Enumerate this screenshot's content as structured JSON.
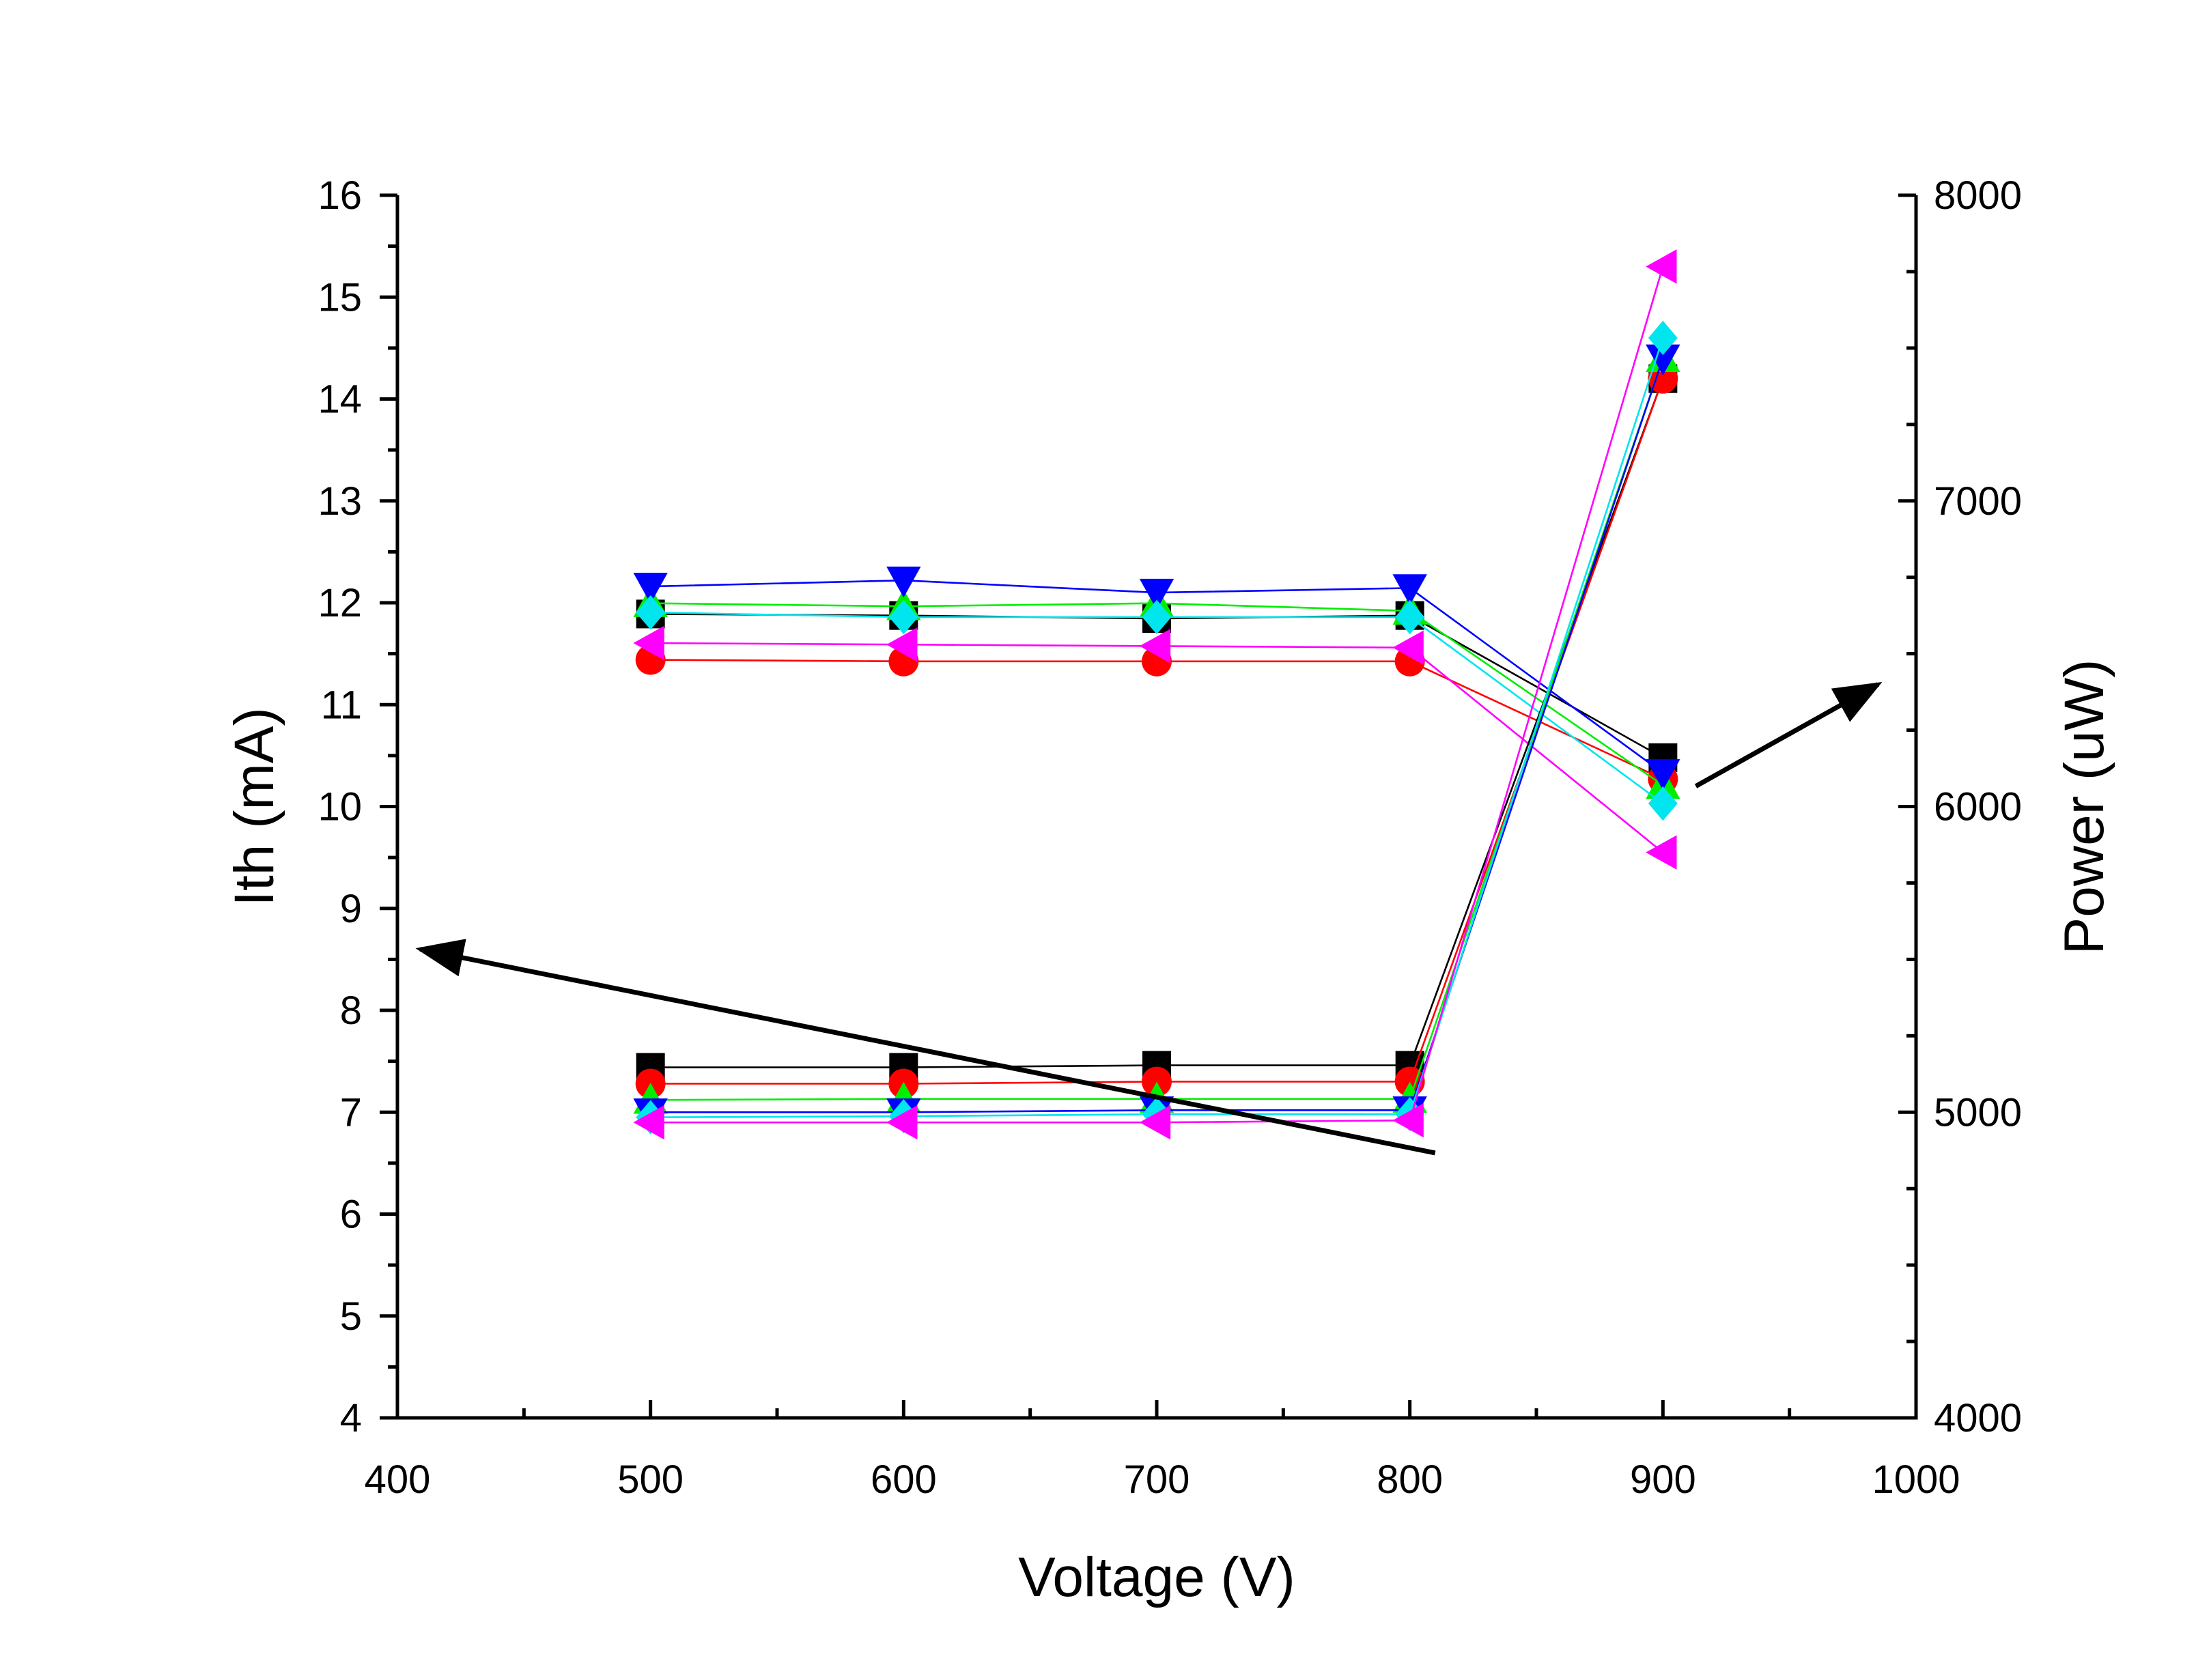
{
  "chart_data": {
    "type": "line",
    "title": "",
    "xlabel": "Voltage (V)",
    "ylabel": "Ith (mA)",
    "y2label": "Power (uW)",
    "xlim": [
      400,
      1000
    ],
    "ylim": [
      4,
      16
    ],
    "y2lim": [
      4000,
      8000
    ],
    "xticks": [
      400,
      500,
      600,
      700,
      800,
      900,
      1000
    ],
    "yticks": [
      4,
      5,
      6,
      7,
      8,
      9,
      10,
      11,
      12,
      13,
      14,
      15,
      16
    ],
    "y2ticks": [
      4000,
      5000,
      6000,
      7000,
      8000
    ],
    "grid": false,
    "legend": "none",
    "x": [
      500,
      600,
      700,
      800,
      900
    ],
    "ith_series": [
      {
        "color": "#000000",
        "marker": "square",
        "values": [
          7.44,
          7.44,
          7.46,
          7.46,
          14.2
        ]
      },
      {
        "color": "#ff0000",
        "marker": "circle",
        "values": [
          7.28,
          7.28,
          7.3,
          7.3,
          14.2
        ]
      },
      {
        "color": "#00ee00",
        "marker": "triangle-up",
        "values": [
          7.12,
          7.13,
          7.13,
          7.13,
          14.4
        ]
      },
      {
        "color": "#0000ff",
        "marker": "triangle-down",
        "values": [
          7.0,
          7.0,
          7.02,
          7.02,
          14.4
        ]
      },
      {
        "color": "#00e5ee",
        "marker": "diamond",
        "values": [
          6.95,
          6.96,
          6.98,
          6.98,
          14.6
        ]
      },
      {
        "color": "#ff00ff",
        "marker": "triangle-left",
        "values": [
          6.9,
          6.9,
          6.9,
          6.92,
          15.3
        ]
      }
    ],
    "power_series": [
      {
        "color": "#000000",
        "marker": "square",
        "values": [
          6630,
          6625,
          6615,
          6625,
          6160
        ]
      },
      {
        "color": "#ff0000",
        "marker": "circle",
        "values": [
          6480,
          6475,
          6475,
          6475,
          6090
        ]
      },
      {
        "color": "#00ee00",
        "marker": "triangle-up",
        "values": [
          6665,
          6655,
          6665,
          6640,
          6070
        ]
      },
      {
        "color": "#0000ff",
        "marker": "triangle-down",
        "values": [
          6720,
          6740,
          6700,
          6715,
          6110
        ]
      },
      {
        "color": "#00e5ee",
        "marker": "diamond",
        "values": [
          6635,
          6620,
          6620,
          6620,
          6010
        ]
      },
      {
        "color": "#ff00ff",
        "marker": "triangle-left",
        "values": [
          6535,
          6530,
          6525,
          6520,
          5850
        ]
      }
    ],
    "annotations": [
      {
        "type": "arrow",
        "direction": "to-left-axis",
        "from": [
          810,
          6.6
        ],
        "to": [
          409,
          8.6
        ]
      },
      {
        "type": "arrow",
        "direction": "to-right-axis",
        "from": [
          913,
          10.2
        ],
        "to": [
          985,
          11.2
        ]
      }
    ]
  }
}
